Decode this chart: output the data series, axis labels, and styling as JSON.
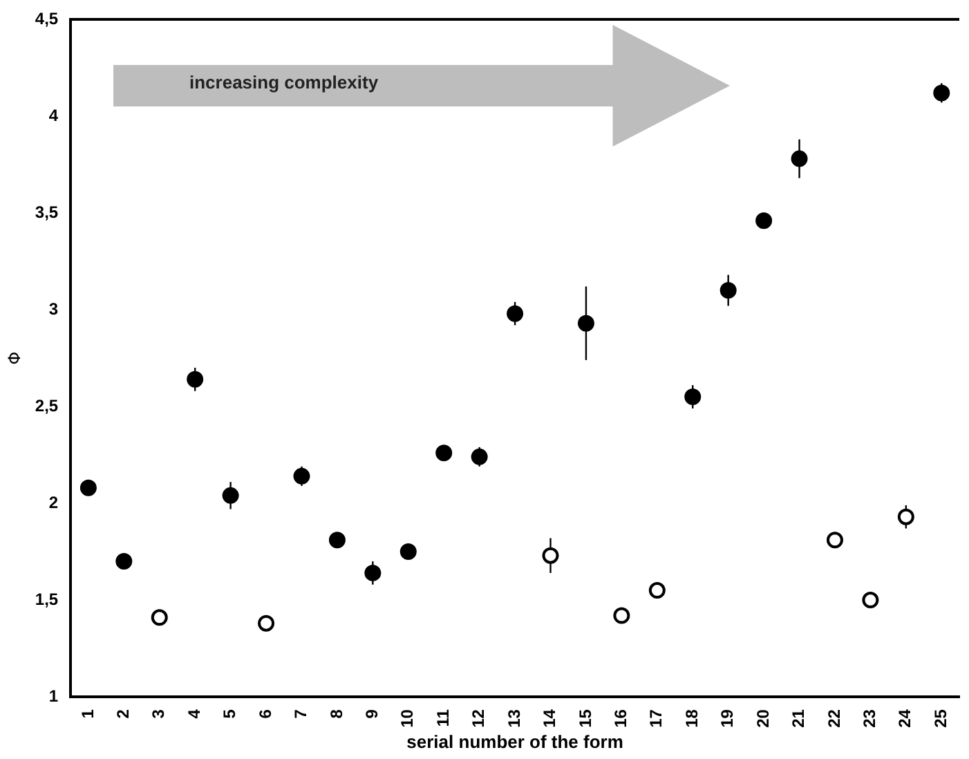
{
  "chart_data": {
    "type": "scatter",
    "xlabel": "serial number of the form",
    "ylabel": "Φ",
    "categories": [
      "1",
      "2",
      "3",
      "4",
      "5",
      "6",
      "7",
      "8",
      "9",
      "10",
      "11",
      "12",
      "13",
      "14",
      "15",
      "16",
      "17",
      "18",
      "19",
      "20",
      "21",
      "22",
      "23",
      "24",
      "25"
    ],
    "series": [
      {
        "color": "#000000",
        "values": [
          2.08,
          1.7,
          null,
          2.64,
          2.04,
          null,
          2.14,
          1.81,
          1.64,
          1.75,
          2.26,
          2.24,
          2.98,
          null,
          2.93,
          null,
          null,
          2.55,
          3.1,
          3.46,
          3.78,
          null,
          null,
          null,
          4.12
        ],
        "errors": [
          null,
          null,
          null,
          0.06,
          0.07,
          null,
          0.05,
          null,
          0.06,
          null,
          0.04,
          0.05,
          0.06,
          null,
          0.19,
          null,
          null,
          0.06,
          0.08,
          0.04,
          0.1,
          null,
          null,
          null,
          0.05
        ]
      },
      {
        "color": "#ffffff",
        "values": [
          null,
          null,
          1.41,
          null,
          null,
          1.38,
          null,
          null,
          null,
          null,
          null,
          null,
          null,
          1.73,
          null,
          1.42,
          1.55,
          null,
          null,
          null,
          null,
          1.81,
          1.5,
          1.93,
          null
        ],
        "errors": [
          null,
          null,
          null,
          null,
          null,
          null,
          null,
          null,
          null,
          null,
          null,
          null,
          null,
          0.09,
          null,
          0.04,
          null,
          null,
          null,
          null,
          null,
          null,
          null,
          0.06,
          null
        ]
      }
    ],
    "marker": "circle",
    "ylim": [
      1,
      4.5
    ],
    "yticks": [
      1,
      {
        "value": 1.5,
        "label": "1,5"
      },
      2,
      {
        "value": 2.5,
        "label": "2,5"
      },
      3,
      {
        "value": 3.5,
        "label": "3,5"
      },
      4,
      {
        "value": 4.5,
        "label": "4,5"
      }
    ],
    "grid": false,
    "legend": false,
    "annotations": [
      "increasing complexity"
    ]
  }
}
